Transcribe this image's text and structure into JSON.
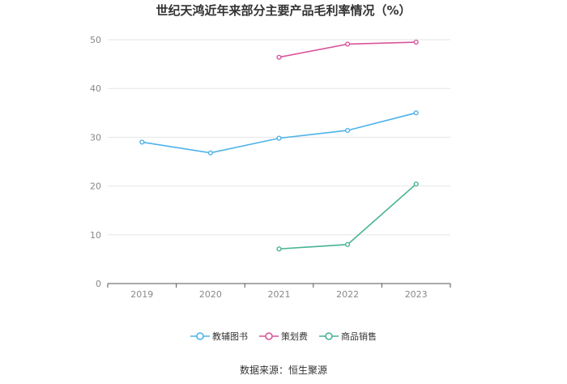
{
  "chart_data": {
    "type": "line",
    "title": "世纪天鸿近年来部分主要产品毛利率情况（%）",
    "categories": [
      "2019",
      "2020",
      "2021",
      "2022",
      "2023"
    ],
    "ylim": [
      0,
      50
    ],
    "yticks": [
      0,
      10,
      20,
      30,
      40,
      50
    ],
    "grid": true,
    "legend_position": "bottom",
    "series": [
      {
        "name": "教辅图书",
        "color": "#4db3e8",
        "values": [
          29.0,
          26.8,
          29.8,
          31.4,
          35.0
        ]
      },
      {
        "name": "策划费",
        "color": "#d9559b",
        "values": [
          null,
          null,
          46.4,
          49.1,
          49.5
        ]
      },
      {
        "name": "商品销售",
        "color": "#47b395",
        "values": [
          null,
          null,
          7.1,
          8.0,
          20.4
        ]
      }
    ]
  },
  "source": "数据来源：恒生聚源"
}
